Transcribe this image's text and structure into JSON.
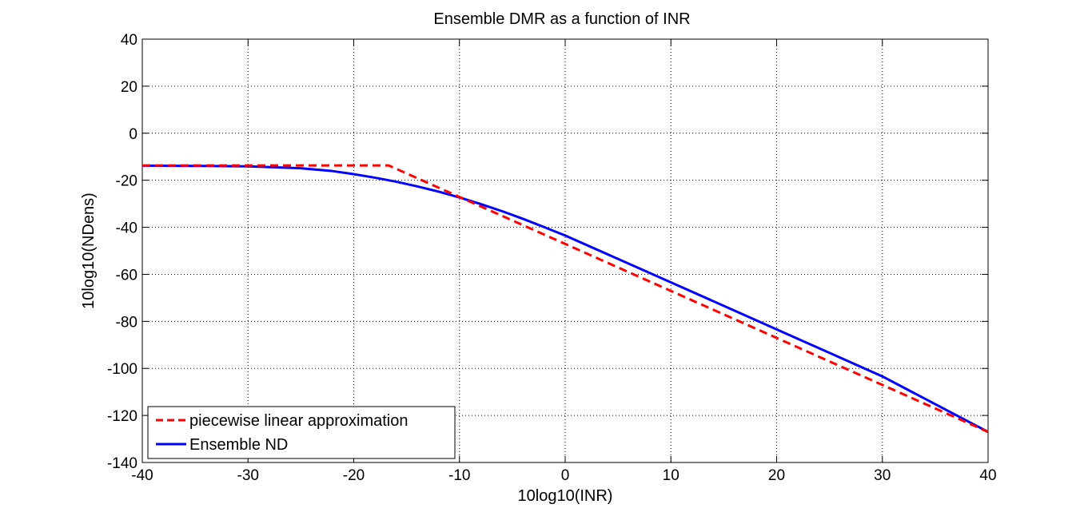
{
  "chart_data": {
    "type": "line",
    "title": "Ensemble DMR as a function of INR",
    "xlabel": "10log10(INR)",
    "ylabel": "10log10(NDens)",
    "xlim": [
      -40,
      40
    ],
    "ylim": [
      -140,
      40
    ],
    "xticks": [
      -40,
      -30,
      -20,
      -10,
      0,
      10,
      20,
      30,
      40
    ],
    "yticks": [
      40,
      20,
      0,
      -20,
      -40,
      -60,
      -80,
      -100,
      -120,
      -140
    ],
    "xtick_labels": [
      "-40",
      "-30",
      "-20",
      "-10",
      "0",
      "10",
      "20",
      "30",
      "40"
    ],
    "ytick_labels": [
      "40",
      "20",
      "0",
      "-20",
      "-40",
      "-60",
      "-80",
      "-100",
      "-120",
      "-140"
    ],
    "grid": true,
    "legend_position": "bottom-left",
    "series": [
      {
        "name": "piecewise linear approximation",
        "color": "#ff0000",
        "style": "dashed",
        "x": [
          -40,
          -16.7,
          40
        ],
        "y": [
          -13.7,
          -13.7,
          -127
        ]
      },
      {
        "name": "Ensemble ND",
        "color": "#0000ff",
        "style": "solid",
        "x": [
          -40,
          -35,
          -30,
          -25,
          -22,
          -20,
          -18,
          -16,
          -14,
          -12,
          -10,
          -8,
          -6,
          -4,
          -2,
          0,
          10,
          20,
          30,
          40
        ],
        "y": [
          -13.8,
          -13.9,
          -14.1,
          -14.9,
          -16.1,
          -17.4,
          -18.9,
          -20.6,
          -22.6,
          -24.8,
          -27.3,
          -30.1,
          -33.1,
          -36.4,
          -39.9,
          -43.5,
          -63.4,
          -83.4,
          -103.4,
          -127
        ]
      }
    ]
  }
}
